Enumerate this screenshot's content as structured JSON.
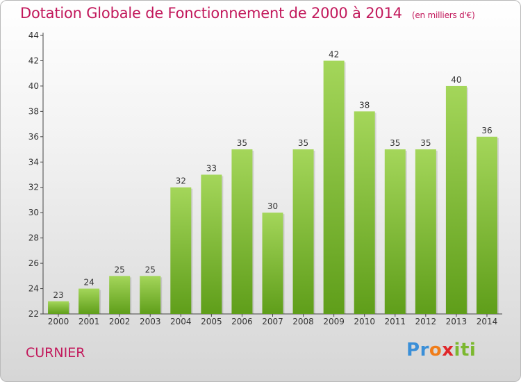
{
  "title": "Dotation Globale de Fonctionnement de 2000 à 2014",
  "unit": "(en milliers d'€)",
  "commune": "CURNIER",
  "logo": {
    "letters": [
      "P",
      "r",
      "o",
      "x",
      "i",
      "t",
      "i"
    ],
    "colors": [
      "#3a8fd8",
      "#3a8fd8",
      "#f07d1a",
      "#e0262a",
      "#7cb82f",
      "#7cb82f",
      "#7cb82f"
    ]
  },
  "colors": {
    "bar_top": "#a4d65a",
    "bar_bottom": "#5f9e1a",
    "title": "#c2185b"
  },
  "chart_data": {
    "type": "bar",
    "categories": [
      "2000",
      "2001",
      "2002",
      "2003",
      "2004",
      "2005",
      "2006",
      "2007",
      "2008",
      "2009",
      "2010",
      "2011",
      "2012",
      "2013",
      "2014"
    ],
    "values": [
      23,
      24,
      25,
      25,
      32,
      33,
      35,
      30,
      35,
      42,
      38,
      35,
      35,
      40,
      36
    ],
    "ylim": [
      22,
      44
    ],
    "yticks": [
      22,
      24,
      26,
      28,
      30,
      32,
      34,
      36,
      38,
      40,
      42,
      44
    ],
    "grid": false,
    "xlabel": "",
    "ylabel": ""
  }
}
